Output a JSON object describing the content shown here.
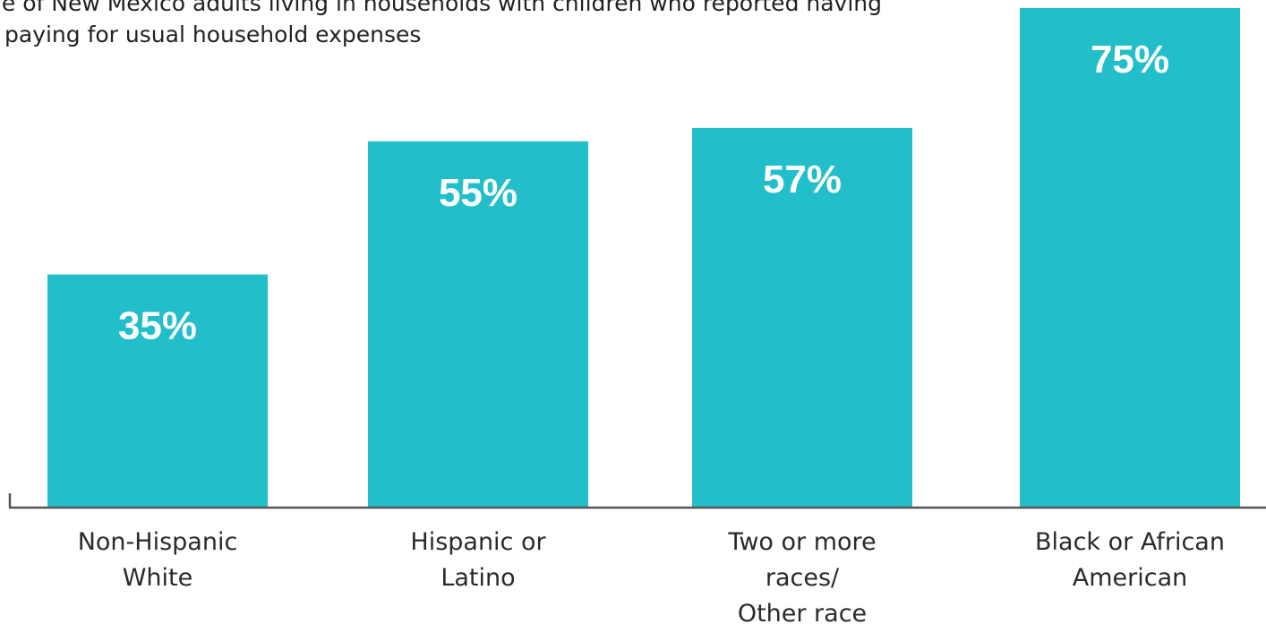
{
  "title": {
    "line1": "ge of New Mexico adults living in households with children who reported having",
    "line2": "paying for usual household expenses"
  },
  "colors": {
    "bar": "#22bfcb",
    "axis": "#555555",
    "label_text": "#ffffff",
    "category_text": "#2a2a2a"
  },
  "chart_data": {
    "type": "bar",
    "categories": [
      [
        "Non-Hispanic",
        "White"
      ],
      [
        "Hispanic or",
        "Latino"
      ],
      [
        "Two or more",
        "races/",
        "Other race"
      ],
      [
        "Black or African",
        "American"
      ]
    ],
    "values": [
      35,
      55,
      57,
      75
    ],
    "value_labels": [
      "35%",
      "55%",
      "57%",
      "75%"
    ],
    "ylim": [
      0,
      75
    ],
    "grid": false,
    "legend": "none"
  }
}
